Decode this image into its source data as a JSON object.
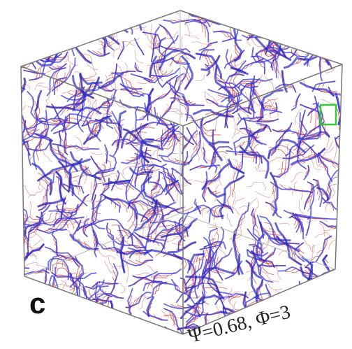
{
  "panel": {
    "label": "c",
    "annotation": "Ψ=0.68, Φ=3"
  }
}
